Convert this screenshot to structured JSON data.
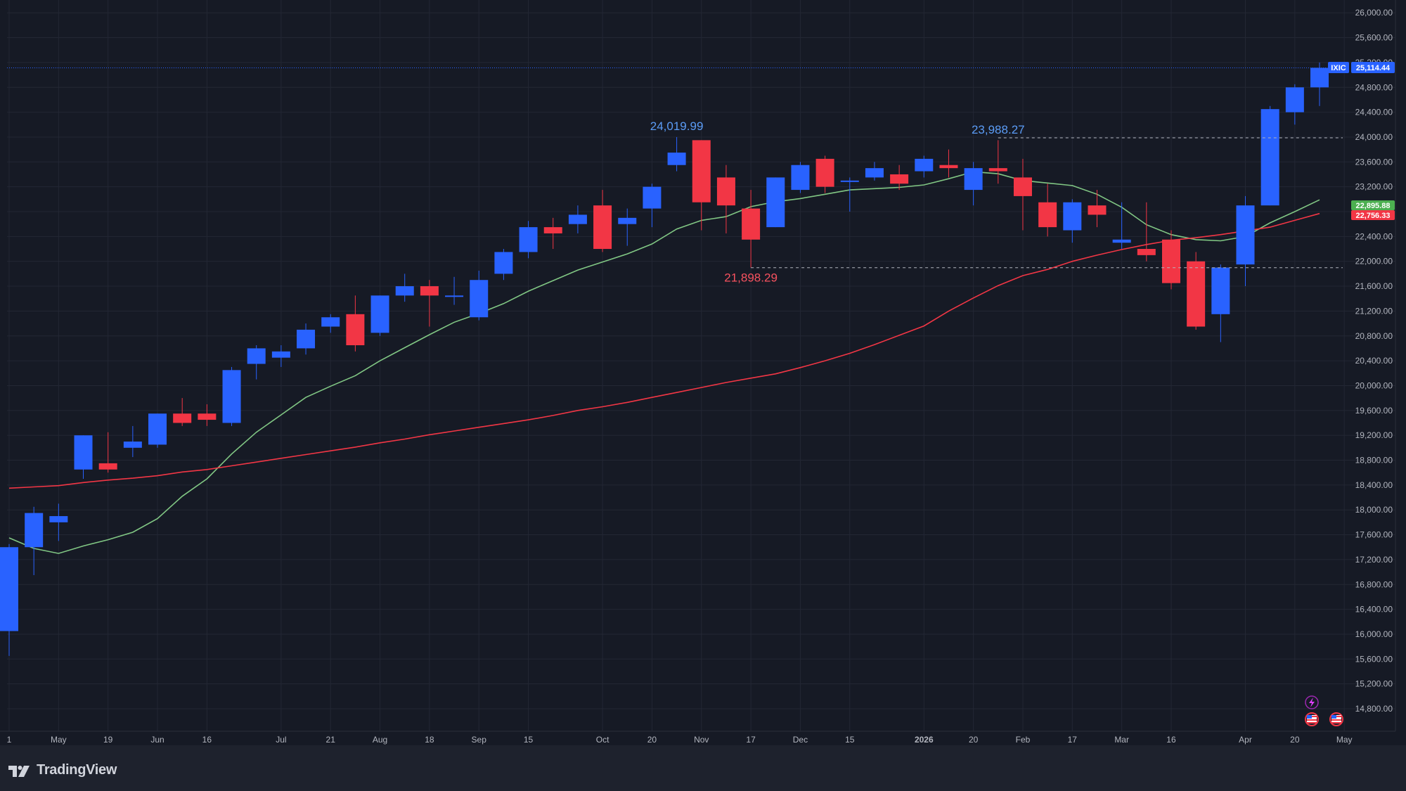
{
  "chart_data": {
    "type": "candlestick",
    "symbol": "IXIC",
    "last_price_label": "25,114.44",
    "y_axis": {
      "range": [
        14600,
        26200
      ],
      "ticks": [
        "26,000.00",
        "25,600.00",
        "25,200.00",
        "24,800.00",
        "24,400.00",
        "24,000.00",
        "23,600.00",
        "23,200.00",
        "22,800.00",
        "22,400.00",
        "22,000.00",
        "21,600.00",
        "21,200.00",
        "20,800.00",
        "20,400.00",
        "20,000.00",
        "19,600.00",
        "19,200.00",
        "18,800.00",
        "18,400.00",
        "18,000.00",
        "17,600.00",
        "17,200.00",
        "16,800.00",
        "16,400.00",
        "16,000.00",
        "15,600.00",
        "15,200.00",
        "14,800.00"
      ],
      "tick_values": [
        26000,
        25600,
        25200,
        24800,
        24400,
        24000,
        23600,
        23200,
        22800,
        22400,
        22000,
        21600,
        21200,
        20800,
        20400,
        20000,
        19600,
        19200,
        18800,
        18400,
        18000,
        17600,
        17200,
        16800,
        16400,
        16000,
        15600,
        15200,
        14800
      ]
    },
    "x_axis": {
      "ticks": [
        {
          "label": "1",
          "bar": 0
        },
        {
          "label": "May",
          "bar": 2
        },
        {
          "label": "19",
          "bar": 4
        },
        {
          "label": "Jun",
          "bar": 6
        },
        {
          "label": "16",
          "bar": 8
        },
        {
          "label": "Jul",
          "bar": 11
        },
        {
          "label": "21",
          "bar": 13
        },
        {
          "label": "Aug",
          "bar": 15
        },
        {
          "label": "18",
          "bar": 17
        },
        {
          "label": "Sep",
          "bar": 19
        },
        {
          "label": "15",
          "bar": 21
        },
        {
          "label": "Oct",
          "bar": 24
        },
        {
          "label": "20",
          "bar": 26
        },
        {
          "label": "Nov",
          "bar": 28
        },
        {
          "label": "17",
          "bar": 30
        },
        {
          "label": "Dec",
          "bar": 32
        },
        {
          "label": "15",
          "bar": 34
        },
        {
          "label": "2026",
          "bar": 37,
          "bold": true
        },
        {
          "label": "20",
          "bar": 39
        },
        {
          "label": "Feb",
          "bar": 41
        },
        {
          "label": "17",
          "bar": 43
        },
        {
          "label": "Mar",
          "bar": 45
        },
        {
          "label": "16",
          "bar": 47
        },
        {
          "label": "Apr",
          "bar": 50
        },
        {
          "label": "20",
          "bar": 52
        },
        {
          "label": "May",
          "bar": 54
        }
      ]
    },
    "candles": [
      {
        "o": 16050,
        "h": 17450,
        "l": 15650,
        "c": 17400
      },
      {
        "o": 17400,
        "h": 18050,
        "l": 16950,
        "c": 17950
      },
      {
        "o": 17800,
        "h": 18100,
        "l": 17500,
        "c": 17900
      },
      {
        "o": 18650,
        "h": 19200,
        "l": 18500,
        "c": 19200
      },
      {
        "o": 18750,
        "h": 19250,
        "l": 18600,
        "c": 18650
      },
      {
        "o": 19000,
        "h": 19350,
        "l": 18850,
        "c": 19100
      },
      {
        "o": 19050,
        "h": 19550,
        "l": 19000,
        "c": 19550
      },
      {
        "o": 19550,
        "h": 19800,
        "l": 19350,
        "c": 19400
      },
      {
        "o": 19550,
        "h": 19700,
        "l": 19350,
        "c": 19450
      },
      {
        "o": 19400,
        "h": 20300,
        "l": 19350,
        "c": 20250
      },
      {
        "o": 20350,
        "h": 20650,
        "l": 20100,
        "c": 20600
      },
      {
        "o": 20450,
        "h": 20650,
        "l": 20300,
        "c": 20550
      },
      {
        "o": 20600,
        "h": 21000,
        "l": 20500,
        "c": 20900
      },
      {
        "o": 20950,
        "h": 21150,
        "l": 20850,
        "c": 21100
      },
      {
        "o": 21150,
        "h": 21450,
        "l": 20550,
        "c": 20650
      },
      {
        "o": 20850,
        "h": 21450,
        "l": 20800,
        "c": 21450
      },
      {
        "o": 21450,
        "h": 21800,
        "l": 21350,
        "c": 21600
      },
      {
        "o": 21600,
        "h": 21700,
        "l": 20950,
        "c": 21450
      },
      {
        "o": 21450,
        "h": 21750,
        "l": 21300,
        "c": 21450
      },
      {
        "o": 21100,
        "h": 21850,
        "l": 21050,
        "c": 21700
      },
      {
        "o": 21800,
        "h": 22200,
        "l": 21700,
        "c": 22150
      },
      {
        "o": 22150,
        "h": 22650,
        "l": 22050,
        "c": 22550
      },
      {
        "o": 22550,
        "h": 22700,
        "l": 22200,
        "c": 22450
      },
      {
        "o": 22600,
        "h": 22900,
        "l": 22450,
        "c": 22750
      },
      {
        "o": 22900,
        "h": 23150,
        "l": 22150,
        "c": 22200
      },
      {
        "o": 22600,
        "h": 22850,
        "l": 22250,
        "c": 22700
      },
      {
        "o": 22850,
        "h": 23250,
        "l": 22550,
        "c": 23200
      },
      {
        "o": 23550,
        "h": 24000,
        "l": 23450,
        "c": 23750
      },
      {
        "o": 23950,
        "h": 23950,
        "l": 22500,
        "c": 22950
      },
      {
        "o": 23350,
        "h": 23550,
        "l": 22450,
        "c": 22900
      },
      {
        "o": 22850,
        "h": 23150,
        "l": 21900,
        "c": 22350
      },
      {
        "o": 22550,
        "h": 23350,
        "l": 22550,
        "c": 23350
      },
      {
        "o": 23150,
        "h": 23600,
        "l": 23100,
        "c": 23550
      },
      {
        "o": 23650,
        "h": 23700,
        "l": 23100,
        "c": 23200
      },
      {
        "o": 23300,
        "h": 23350,
        "l": 22800,
        "c": 23300
      },
      {
        "o": 23350,
        "h": 23600,
        "l": 23300,
        "c": 23500
      },
      {
        "o": 23400,
        "h": 23550,
        "l": 23150,
        "c": 23250
      },
      {
        "o": 23450,
        "h": 23700,
        "l": 23350,
        "c": 23650
      },
      {
        "o": 23550,
        "h": 23800,
        "l": 23350,
        "c": 23500
      },
      {
        "o": 23150,
        "h": 23600,
        "l": 22900,
        "c": 23500
      },
      {
        "o": 23500,
        "h": 23950,
        "l": 23250,
        "c": 23450
      },
      {
        "o": 23350,
        "h": 23650,
        "l": 22500,
        "c": 23050
      },
      {
        "o": 22950,
        "h": 23250,
        "l": 22400,
        "c": 22550
      },
      {
        "o": 22500,
        "h": 23000,
        "l": 22300,
        "c": 22950
      },
      {
        "o": 22900,
        "h": 23150,
        "l": 22550,
        "c": 22750
      },
      {
        "o": 22300,
        "h": 22950,
        "l": 22200,
        "c": 22350
      },
      {
        "o": 22200,
        "h": 22950,
        "l": 22000,
        "c": 22100
      },
      {
        "o": 22350,
        "h": 22500,
        "l": 21550,
        "c": 21650
      },
      {
        "o": 22000,
        "h": 22150,
        "l": 20900,
        "c": 20950
      },
      {
        "o": 21150,
        "h": 21950,
        "l": 20700,
        "c": 21900
      },
      {
        "o": 21950,
        "h": 23050,
        "l": 21600,
        "c": 22900
      },
      {
        "o": 22900,
        "h": 24500,
        "l": 22900,
        "c": 24450
      },
      {
        "o": 24400,
        "h": 24850,
        "l": 24200,
        "c": 24800
      },
      {
        "o": 24800,
        "h": 25200,
        "l": 24500,
        "c": 25114.44
      }
    ],
    "series": [
      {
        "name": "",
        "color": "#81c784",
        "values": [
          17550,
          17380,
          17300,
          17420,
          17520,
          17640,
          17860,
          18220,
          18500,
          18900,
          19250,
          19530,
          19810,
          19990,
          20160,
          20400,
          20610,
          20820,
          21020,
          21160,
          21320,
          21520,
          21690,
          21860,
          21990,
          22120,
          22280,
          22520,
          22660,
          22720,
          22880,
          22960,
          23010,
          23080,
          23150,
          23170,
          23190,
          23230,
          23330,
          23440,
          23410,
          23300,
          23260,
          23220,
          23080,
          22870,
          22590,
          22430,
          22350,
          22330,
          22400,
          22620,
          22800,
          22990
        ]
      },
      {
        "name": "",
        "color": "#f23645",
        "values": [
          18350,
          18370,
          18390,
          18440,
          18480,
          18510,
          18550,
          18610,
          18650,
          18710,
          18770,
          18830,
          18890,
          18950,
          19010,
          19080,
          19140,
          19210,
          19270,
          19330,
          19390,
          19450,
          19520,
          19600,
          19660,
          19730,
          19810,
          19890,
          19970,
          20050,
          20120,
          20190,
          20290,
          20400,
          20520,
          20660,
          20810,
          20960,
          21200,
          21410,
          21610,
          21770,
          21870,
          22000,
          22100,
          22190,
          22270,
          22340,
          22380,
          22430,
          22490,
          22550,
          22660,
          22770
        ]
      }
    ],
    "ma_last_labels": [
      "22,895.88",
      "22,756.33"
    ],
    "annotations": {
      "high_1": "24,019.99",
      "high_2": "23,988.27",
      "low_1": "21,898.29"
    }
  },
  "colors": {
    "background": "#161a25",
    "grid": "#232734",
    "up": "#2962ff",
    "down": "#f23645",
    "ma_fast": "#81c784",
    "ma_slow": "#f23645",
    "axis_text": "#b2b5be"
  },
  "footer": {
    "brand": "TradingView"
  },
  "icons": [
    "flash-icon",
    "us-flag-icon"
  ]
}
